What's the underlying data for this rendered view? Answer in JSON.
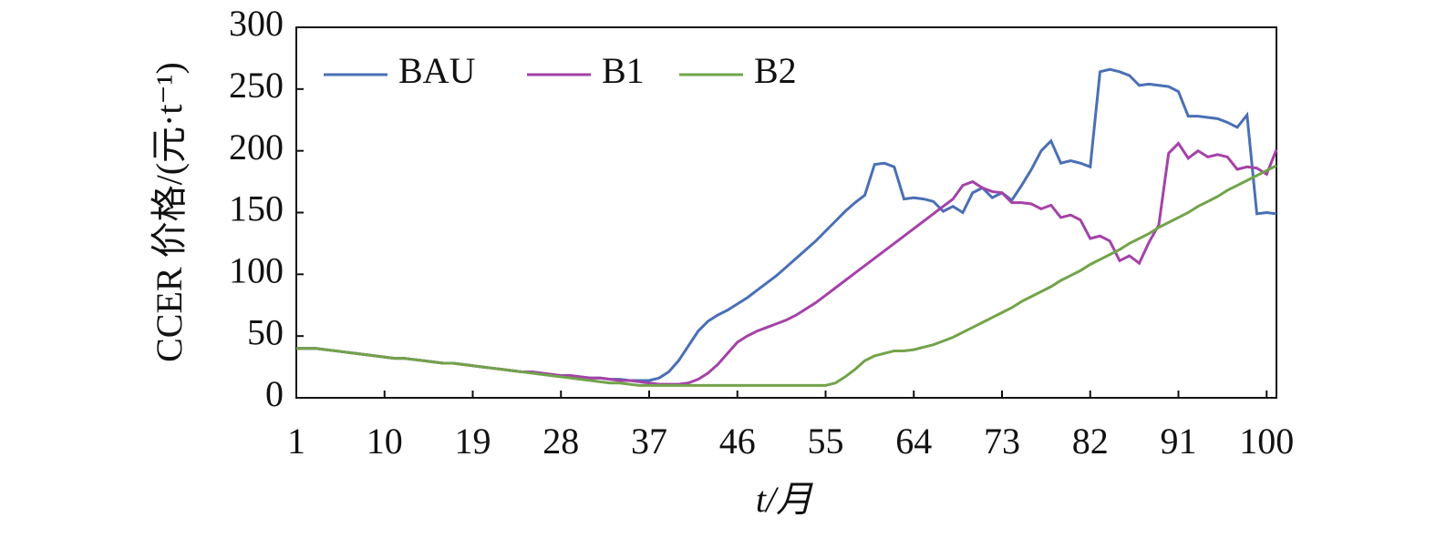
{
  "chart_data": {
    "type": "line",
    "ylabel": "CCER 价格/(元·t⁻¹)",
    "xlabel": "t/月",
    "x": [
      1,
      2,
      3,
      4,
      5,
      6,
      7,
      8,
      9,
      10,
      11,
      12,
      13,
      14,
      15,
      16,
      17,
      18,
      19,
      20,
      21,
      22,
      23,
      24,
      25,
      26,
      27,
      28,
      29,
      30,
      31,
      32,
      33,
      34,
      35,
      36,
      37,
      38,
      39,
      40,
      41,
      42,
      43,
      44,
      45,
      46,
      47,
      48,
      49,
      50,
      51,
      52,
      53,
      54,
      55,
      56,
      57,
      58,
      59,
      60,
      61,
      62,
      63,
      64,
      65,
      66,
      67,
      68,
      69,
      70,
      71,
      72,
      73,
      74,
      75,
      76,
      77,
      78,
      79,
      80,
      81,
      82,
      83,
      84,
      85,
      86,
      87,
      88,
      89,
      90,
      91,
      92,
      93,
      94,
      95,
      96,
      97,
      98,
      99,
      100,
      101
    ],
    "series": [
      {
        "name": "BAU",
        "color": "#4a6fb5",
        "values": [
          40,
          40,
          40,
          39,
          38,
          37,
          36,
          35,
          34,
          33,
          32,
          32,
          31,
          30,
          29,
          28,
          28,
          27,
          26,
          25,
          24,
          23,
          22,
          21,
          21,
          20,
          19,
          18,
          18,
          17,
          16,
          16,
          15,
          15,
          14,
          14,
          14,
          16,
          21,
          30,
          42,
          54,
          62,
          67,
          71,
          76,
          81,
          87,
          93,
          99,
          106,
          113,
          120,
          127,
          135,
          143,
          151,
          158,
          164,
          189,
          190,
          187,
          161,
          162,
          161,
          159,
          151,
          155,
          150,
          166,
          170,
          162,
          166,
          160,
          172,
          185,
          200,
          208,
          190,
          192,
          190,
          187,
          264,
          266,
          264,
          261,
          253,
          254,
          253,
          252,
          248,
          228,
          228,
          227,
          226,
          223,
          219,
          229,
          149,
          150,
          149
        ]
      },
      {
        "name": "B1",
        "color": "#a442a8",
        "values": [
          40,
          40,
          40,
          39,
          38,
          37,
          36,
          35,
          34,
          33,
          32,
          32,
          31,
          30,
          29,
          28,
          28,
          27,
          26,
          25,
          24,
          23,
          22,
          21,
          21,
          20,
          19,
          18,
          18,
          17,
          16,
          16,
          15,
          14,
          14,
          13,
          12,
          11,
          11,
          11,
          12,
          15,
          20,
          27,
          36,
          45,
          50,
          54,
          57,
          60,
          63,
          67,
          72,
          77,
          83,
          89,
          95,
          101,
          107,
          113,
          119,
          125,
          131,
          137,
          143,
          149,
          155,
          161,
          172,
          175,
          170,
          167,
          166,
          158,
          158,
          157,
          153,
          156,
          146,
          148,
          144,
          129,
          131,
          127,
          111,
          115,
          109,
          126,
          140,
          198,
          206,
          194,
          200,
          195,
          197,
          195,
          185,
          187,
          186,
          181,
          201
        ]
      },
      {
        "name": "B2",
        "color": "#72a34a",
        "values": [
          40,
          40,
          40,
          39,
          38,
          37,
          36,
          35,
          34,
          33,
          32,
          32,
          31,
          30,
          29,
          28,
          28,
          27,
          26,
          25,
          24,
          23,
          22,
          21,
          20,
          19,
          18,
          17,
          16,
          15,
          14,
          13,
          12,
          12,
          11,
          10,
          10,
          10,
          10,
          10,
          10,
          10,
          10,
          10,
          10,
          10,
          10,
          10,
          10,
          10,
          10,
          10,
          10,
          10,
          10,
          12,
          17,
          23,
          30,
          34,
          36,
          38,
          38,
          39,
          41,
          43,
          46,
          49,
          53,
          57,
          61,
          65,
          69,
          73,
          78,
          82,
          86,
          90,
          95,
          99,
          103,
          108,
          112,
          116,
          120,
          125,
          129,
          133,
          138,
          142,
          146,
          150,
          155,
          159,
          163,
          168,
          172,
          176,
          180,
          184,
          188
        ]
      }
    ],
    "xlim": [
      1,
      101
    ],
    "xticks": [
      1,
      10,
      19,
      28,
      37,
      46,
      55,
      64,
      73,
      82,
      91,
      100
    ],
    "ylim": [
      0,
      300
    ],
    "yticks": [
      0,
      50,
      100,
      150,
      200,
      250,
      300
    ],
    "legend": "top-left"
  }
}
